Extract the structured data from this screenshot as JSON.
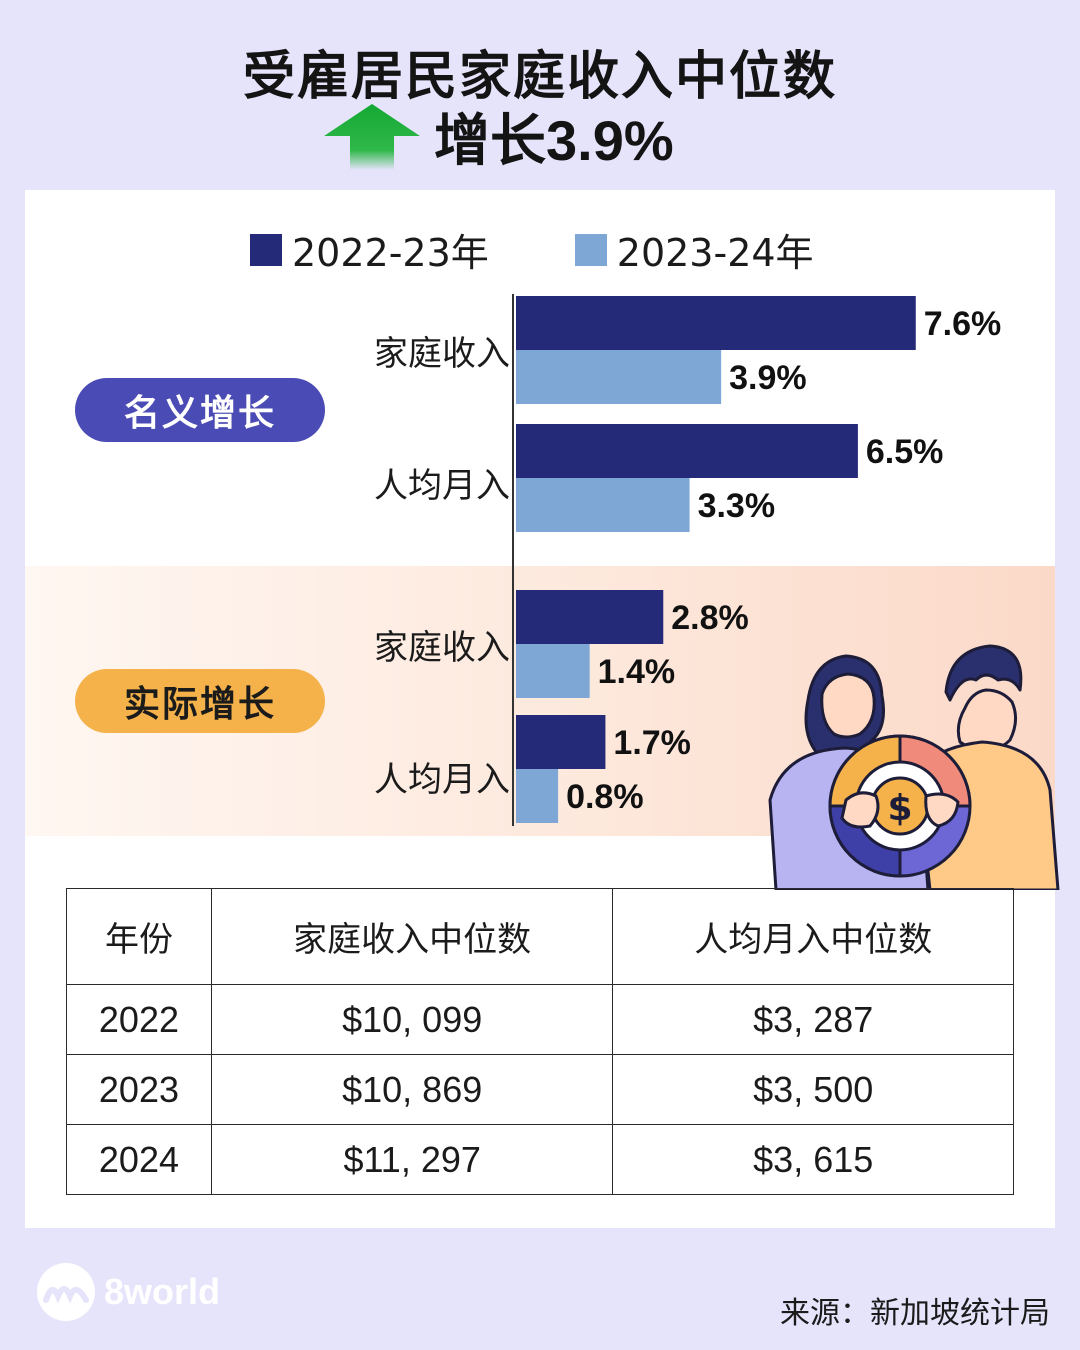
{
  "header": {
    "title": "受雇居民家庭收入中位数",
    "subtitle": "增长3.9%"
  },
  "legend": [
    "2022-23年",
    "2023-24年"
  ],
  "groups": {
    "nominal": "名义增长",
    "real": "实际增长"
  },
  "categories": {
    "household": "家庭收入",
    "per_capita": "人均月入"
  },
  "colors": {
    "series_2022_23": "#252a78",
    "series_2023_24": "#7ea7d6",
    "nominal_pill": "#4b4bb5",
    "real_pill": "#f5b24a",
    "up_arrow": "#1aa034"
  },
  "chart_data": {
    "type": "bar",
    "orientation": "horizontal",
    "groups": [
      "名义增长",
      "名义增长",
      "实际增长",
      "实际增长"
    ],
    "categories": [
      "家庭收入",
      "人均月入",
      "家庭收入",
      "人均月入"
    ],
    "series": [
      {
        "name": "2022-23年",
        "values": [
          7.6,
          6.5,
          2.8,
          1.7
        ],
        "labels": [
          "7.6%",
          "6.5%",
          "2.8%",
          "1.7%"
        ]
      },
      {
        "name": "2023-24年",
        "values": [
          3.9,
          3.3,
          1.4,
          0.8
        ],
        "labels": [
          "3.9%",
          "3.3%",
          "1.4%",
          "0.8%"
        ]
      }
    ],
    "unit": "%",
    "legend_position": "top"
  },
  "table": {
    "headers": [
      "年份",
      "家庭收入中位数",
      "人均月入中位数"
    ],
    "rows": [
      [
        "2022",
        "$10, 099",
        "$3, 287"
      ],
      [
        "2023",
        "$10, 869",
        "$3, 500"
      ],
      [
        "2024",
        "$11, 297",
        "$3, 615"
      ]
    ]
  },
  "footer": {
    "brand": "8world",
    "source": "来源：新加坡统计局"
  }
}
